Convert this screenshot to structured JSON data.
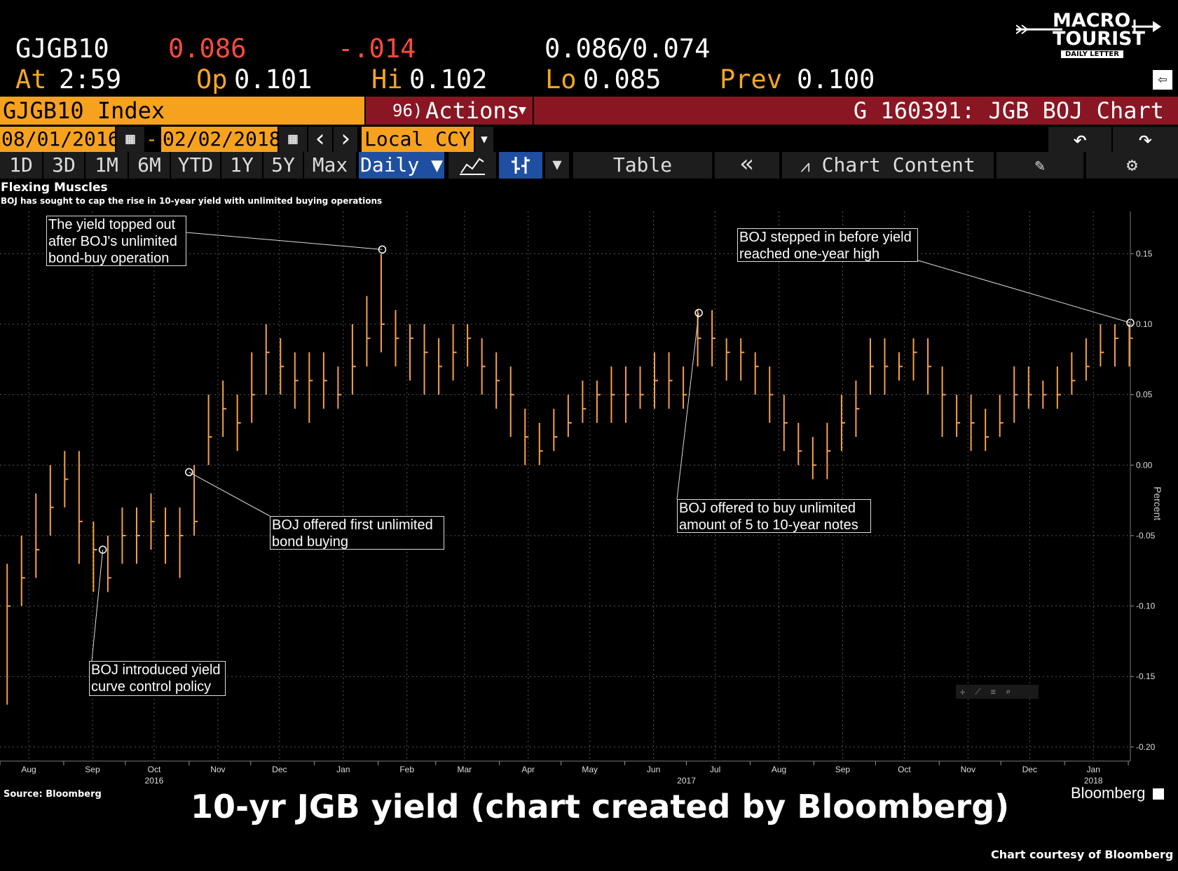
{
  "quote": {
    "ticker": "GJGB10",
    "last": "0.086",
    "change": "-.014",
    "bid_ask_bid": "0.086",
    "bid_ask_sep": "/",
    "bid_ask_ask": "0.074",
    "at_label": "At",
    "at_time": "2:59",
    "op_label": "Op",
    "op_value": "0.101",
    "hi_label": "Hi",
    "hi_value": "0.102",
    "lo_label": "Lo",
    "lo_value": "0.085",
    "prev_label": "Prev",
    "prev_value": "0.100"
  },
  "logo": {
    "line1": "MACRO",
    "line2": "TOURIST",
    "line3": "DAILY LETTER"
  },
  "titlebar": {
    "security": "GJGB10 Index",
    "actions_num": "96)",
    "actions": "Actions",
    "chart_name": "G 160391: JGB BOJ Chart"
  },
  "daterow": {
    "start": "08/01/2016",
    "dash": "-",
    "end": "02/02/2018",
    "prev_arrow": "‹",
    "next_arrow": "›",
    "currency": "Local CCY",
    "undo": "↶",
    "redo": "↷"
  },
  "toolbar": {
    "ranges": [
      "1D",
      "3D",
      "1M",
      "6M",
      "YTD",
      "1Y",
      "5Y",
      "Max"
    ],
    "period": "Daily ▼",
    "dropdown": "▼",
    "table": "Table",
    "collapse": "«",
    "chart_content": "Chart Content"
  },
  "colors": {
    "accent_orange": "#f7a21e",
    "title_red": "#8b1623",
    "selected_blue": "#1f4fa0",
    "series": "#f5a04a"
  },
  "chart_data": {
    "type": "bar",
    "subtype": "ohlc",
    "title": "Flexing Muscles",
    "subtitle": "BOJ has sought to cap the rise in 10-year yield with unlimited buying operations",
    "ylabel": "Percent",
    "ylim": [
      -0.21,
      0.18
    ],
    "yticks": [
      "0.15",
      "0.10",
      "0.05",
      "0.00",
      "-0.05",
      "-0.10",
      "-0.15",
      "-0.20"
    ],
    "ytick_values": [
      0.15,
      0.1,
      0.05,
      0.0,
      -0.05,
      -0.1,
      -0.15,
      -0.2
    ],
    "xlim": [
      "2016-08-01",
      "2018-02-02"
    ],
    "x_month_ticks": [
      "Aug",
      "Sep",
      "Oct",
      "Nov",
      "Dec",
      "Jan",
      "Feb",
      "Mar",
      "Apr",
      "May",
      "Jun",
      "Jul",
      "Aug",
      "Sep",
      "Oct",
      "Nov",
      "Dec",
      "Jan"
    ],
    "x_month_dates": [
      "2016-08-15",
      "2016-09-15",
      "2016-10-15",
      "2016-11-15",
      "2016-12-15",
      "2017-01-15",
      "2017-02-15",
      "2017-03-15",
      "2017-04-15",
      "2017-05-15",
      "2017-06-15",
      "2017-07-15",
      "2017-08-15",
      "2017-09-15",
      "2017-10-15",
      "2017-11-15",
      "2017-12-15",
      "2018-01-15"
    ],
    "x_year_ticks": [
      "2016",
      "2017",
      "2018"
    ],
    "x_year_dates": [
      "2016-10-15",
      "2017-07-01",
      "2018-01-15"
    ],
    "grid": true,
    "series": [
      {
        "x": [
          "2016-08-01",
          "2016-08-08",
          "2016-08-15",
          "2016-08-22",
          "2016-08-29",
          "2016-09-05",
          "2016-09-12",
          "2016-09-19",
          "2016-09-26",
          "2016-10-03",
          "2016-10-10",
          "2016-10-17",
          "2016-10-24",
          "2016-10-31",
          "2016-11-07",
          "2016-11-14",
          "2016-11-21",
          "2016-11-28",
          "2016-12-05",
          "2016-12-12",
          "2016-12-19",
          "2016-12-26",
          "2017-01-02",
          "2017-01-09",
          "2017-01-16",
          "2017-01-23",
          "2017-01-30",
          "2017-02-06",
          "2017-02-13",
          "2017-02-20",
          "2017-02-27",
          "2017-03-06",
          "2017-03-13",
          "2017-03-20",
          "2017-03-27",
          "2017-04-03",
          "2017-04-10",
          "2017-04-17",
          "2017-04-24",
          "2017-05-01",
          "2017-05-08",
          "2017-05-15",
          "2017-05-22",
          "2017-05-29",
          "2017-06-05",
          "2017-06-12",
          "2017-06-19",
          "2017-06-26",
          "2017-07-03",
          "2017-07-10",
          "2017-07-17",
          "2017-07-24",
          "2017-07-31",
          "2017-08-07",
          "2017-08-14",
          "2017-08-21",
          "2017-08-28",
          "2017-09-04",
          "2017-09-11",
          "2017-09-18",
          "2017-09-25",
          "2017-10-02",
          "2017-10-09",
          "2017-10-16",
          "2017-10-23",
          "2017-10-30",
          "2017-11-06",
          "2017-11-13",
          "2017-11-20",
          "2017-11-27",
          "2017-12-04",
          "2017-12-11",
          "2017-12-18",
          "2017-12-25",
          "2018-01-01",
          "2018-01-08",
          "2018-01-15",
          "2018-01-22",
          "2018-01-29"
        ],
        "values": [
          -0.1,
          -0.08,
          -0.06,
          -0.03,
          -0.01,
          -0.04,
          -0.06,
          -0.08,
          -0.05,
          -0.05,
          -0.04,
          -0.05,
          -0.05,
          -0.04,
          0.02,
          0.04,
          0.03,
          0.05,
          0.08,
          0.07,
          0.06,
          0.06,
          0.06,
          0.05,
          0.07,
          0.09,
          0.1,
          0.09,
          0.09,
          0.08,
          0.07,
          0.08,
          0.09,
          0.07,
          0.06,
          0.05,
          0.02,
          0.01,
          0.02,
          0.03,
          0.04,
          0.05,
          0.05,
          0.05,
          0.05,
          0.06,
          0.06,
          0.05,
          0.09,
          0.09,
          0.08,
          0.08,
          0.07,
          0.05,
          0.03,
          0.01,
          0.0,
          0.01,
          0.03,
          0.04,
          0.07,
          0.07,
          0.07,
          0.08,
          0.07,
          0.05,
          0.03,
          0.03,
          0.02,
          0.03,
          0.05,
          0.05,
          0.05,
          0.05,
          0.06,
          0.07,
          0.08,
          0.09,
          0.09
        ],
        "highs": [
          -0.07,
          -0.05,
          -0.02,
          0.0,
          0.01,
          0.01,
          -0.04,
          -0.05,
          -0.03,
          -0.03,
          -0.02,
          -0.03,
          -0.03,
          0.0,
          0.05,
          0.06,
          0.05,
          0.08,
          0.1,
          0.09,
          0.08,
          0.08,
          0.08,
          0.07,
          0.1,
          0.12,
          0.15,
          0.11,
          0.1,
          0.1,
          0.09,
          0.1,
          0.1,
          0.09,
          0.08,
          0.07,
          0.04,
          0.03,
          0.04,
          0.05,
          0.06,
          0.06,
          0.07,
          0.07,
          0.07,
          0.08,
          0.08,
          0.07,
          0.11,
          0.11,
          0.09,
          0.09,
          0.08,
          0.07,
          0.05,
          0.03,
          0.02,
          0.03,
          0.05,
          0.06,
          0.09,
          0.09,
          0.08,
          0.09,
          0.09,
          0.07,
          0.05,
          0.05,
          0.04,
          0.05,
          0.07,
          0.07,
          0.06,
          0.07,
          0.08,
          0.09,
          0.1,
          0.1,
          0.1
        ],
        "lows": [
          -0.17,
          -0.1,
          -0.08,
          -0.05,
          -0.03,
          -0.07,
          -0.09,
          -0.09,
          -0.07,
          -0.07,
          -0.06,
          -0.07,
          -0.08,
          -0.05,
          0.0,
          0.02,
          0.01,
          0.03,
          0.05,
          0.05,
          0.04,
          0.03,
          0.04,
          0.04,
          0.05,
          0.07,
          0.08,
          0.07,
          0.06,
          0.05,
          0.05,
          0.06,
          0.07,
          0.05,
          0.04,
          0.02,
          0.0,
          0.0,
          0.01,
          0.02,
          0.03,
          0.03,
          0.03,
          0.03,
          0.04,
          0.04,
          0.04,
          0.04,
          0.07,
          0.07,
          0.06,
          0.06,
          0.05,
          0.03,
          0.01,
          0.0,
          -0.01,
          -0.01,
          0.01,
          0.02,
          0.05,
          0.05,
          0.06,
          0.06,
          0.05,
          0.02,
          0.02,
          0.01,
          0.01,
          0.02,
          0.03,
          0.04,
          0.04,
          0.04,
          0.05,
          0.06,
          0.07,
          0.07,
          0.07
        ]
      }
    ],
    "markers": [
      {
        "date": "2016-09-20",
        "value": -0.06
      },
      {
        "date": "2016-11-01",
        "value": -0.005
      },
      {
        "date": "2017-02-03",
        "value": 0.153
      },
      {
        "date": "2017-07-07",
        "value": 0.108
      },
      {
        "date": "2018-02-02",
        "value": 0.101
      }
    ],
    "annotations": [
      {
        "line1": "The yield topped out",
        "line2": "after BOJ's unlimited",
        "line3": "bond-buy operation"
      },
      {
        "line1": "BOJ stepped in before yield",
        "line2": "reached one-year high"
      },
      {
        "line1": "BOJ offered first unlimited",
        "line2": "bond buying"
      },
      {
        "line1": "BOJ offered to buy unlimited",
        "line2": "amount of 5 to 10-year notes"
      },
      {
        "line1": "BOJ introduced yield",
        "line2": "curve control policy"
      }
    ],
    "source": "Source: Bloomberg"
  },
  "footer": {
    "brand": "Bloomberg",
    "caption": "10-yr JGB yield (chart created by Bloomberg)",
    "courtesy": "Chart courtesy of Bloomberg"
  }
}
